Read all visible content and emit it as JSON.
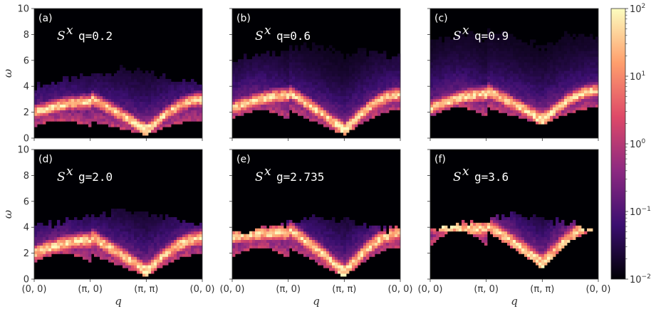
{
  "chart_data": {
    "type": "heatmap",
    "colormap": [
      "#000004",
      "#3b0f70",
      "#8c2981",
      "#de4968",
      "#fe9f6d",
      "#fcfdbf"
    ],
    "shared": {
      "xlabel": "q",
      "ylabel": "ω",
      "x_tick_labels": [
        "(0, 0)",
        "(π, 0)",
        "(π, π)",
        "(0, 0)"
      ],
      "x_tick_positions": [
        0,
        1,
        2,
        3
      ],
      "ylim": [
        0,
        10
      ],
      "y_ticks": [
        0,
        2,
        4,
        6,
        8,
        10
      ],
      "y_tick_labels": [
        "0",
        "2",
        "4",
        "6",
        "8",
        "10"
      ]
    },
    "colorbar": {
      "scale": "log",
      "range": [
        0.01,
        100
      ],
      "ticks": [
        {
          "value": 100,
          "base": "10",
          "exp": "2"
        },
        {
          "value": 10,
          "base": "10",
          "exp": "1"
        },
        {
          "value": 1,
          "base": "10",
          "exp": "0"
        },
        {
          "value": 0.1,
          "base": "10",
          "exp": "−1"
        },
        {
          "value": 0.01,
          "base": "10",
          "exp": "−2"
        }
      ]
    },
    "panels": [
      {
        "label": "(a)",
        "operator": "S",
        "operator_sup": "x",
        "param_text": "q=0.2",
        "g": 0.2,
        "min_gap": 0.3,
        "lower_edge_max": 1.4,
        "peak_center": [
          2.0,
          2.8,
          2.8,
          1.8
        ],
        "upper_edge": 5.0
      },
      {
        "label": "(b)",
        "operator": "S",
        "operator_sup": "x",
        "param_text": "q=0.6",
        "g": 0.6,
        "min_gap": 0.3,
        "lower_edge_max": 2.2,
        "peak_center": [
          2.3,
          3.3,
          3.2,
          2.2
        ],
        "upper_edge": 7.0
      },
      {
        "label": "(c)",
        "operator": "S",
        "operator_sup": "x",
        "param_text": "q=0.9",
        "g": 0.9,
        "min_gap": 1.1,
        "lower_edge_max": 2.4,
        "peak_center": [
          2.3,
          3.4,
          3.5,
          2.6
        ],
        "upper_edge": 8.5
      },
      {
        "label": "(d)",
        "operator": "S",
        "operator_sup": "x",
        "param_text": "g=2.0",
        "g": 2.0,
        "min_gap": 0.3,
        "lower_edge_max": 2.0,
        "peak_center": [
          2.0,
          3.0,
          3.0,
          2.0
        ],
        "upper_edge": 5.0
      },
      {
        "label": "(e)",
        "operator": "S",
        "operator_sup": "x",
        "param_text": "g=2.735",
        "g": 2.735,
        "min_gap": 0.2,
        "lower_edge_max": 2.5,
        "peak_center": [
          3.3,
          3.6,
          3.4,
          2.6
        ],
        "upper_edge": 4.5
      },
      {
        "label": "(f)",
        "operator": "S",
        "operator_sup": "x",
        "param_text": "g=3.6",
        "g": 3.6,
        "min_gap": 0.9,
        "lower_edge_max": 3.8,
        "peak_center": [
          4.2,
          3.9,
          4.0,
          3.3
        ],
        "upper_edge": 4.7
      }
    ]
  }
}
